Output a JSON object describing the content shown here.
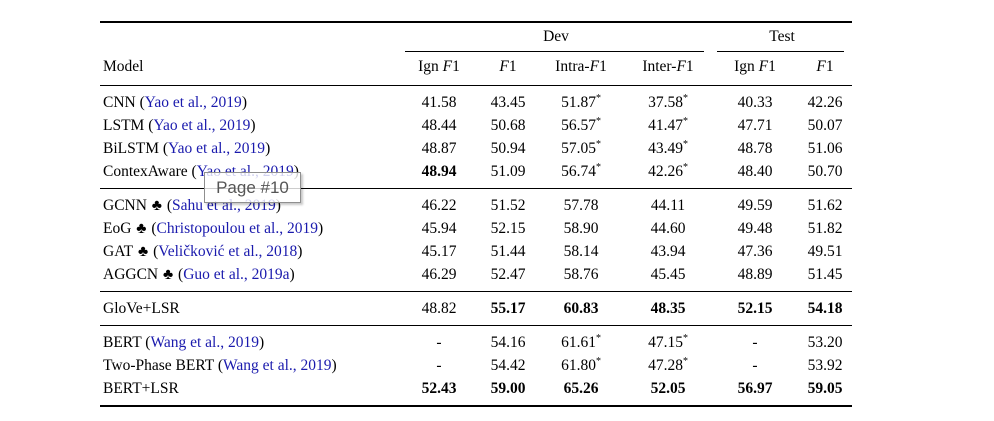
{
  "tooltip": {
    "text": "Page #10"
  },
  "colors": {
    "link_blue": "#1a1aad",
    "rule": "#000000",
    "tooltip_border": "#8f8f8f",
    "tooltip_text": "#555555"
  },
  "symbols": {
    "club": "♣",
    "star": "*",
    "dash": "-",
    "open_paren": " (",
    "close_paren": ")"
  },
  "table": {
    "span_headers": [
      {
        "label": "",
        "span": 1,
        "underline": false
      },
      {
        "label": "Dev",
        "span": 4,
        "underline": true
      },
      {
        "label": "Test",
        "span": 2,
        "underline": true
      }
    ],
    "columns": [
      {
        "text": "Model"
      },
      {
        "pre": "Ign ",
        "italic": "F",
        "post": "1"
      },
      {
        "pre": "",
        "italic": "F",
        "post": "1"
      },
      {
        "pre": "Intra-",
        "italic": "F",
        "post": "1"
      },
      {
        "pre": "Inter-",
        "italic": "F",
        "post": "1"
      },
      {
        "pre": "Ign ",
        "italic": "F",
        "post": "1"
      },
      {
        "pre": "",
        "italic": "F",
        "post": "1"
      }
    ],
    "groups": [
      {
        "rows": [
          {
            "model": {
              "name": "CNN",
              "club": false,
              "cite": "Yao et al., 2019"
            },
            "cells": [
              {
                "v": "41.58"
              },
              {
                "v": "43.45"
              },
              {
                "v": "51.87",
                "star": true
              },
              {
                "v": "37.58",
                "star": true
              },
              {
                "v": "40.33"
              },
              {
                "v": "42.26"
              }
            ]
          },
          {
            "model": {
              "name": "LSTM",
              "club": false,
              "cite": "Yao et al., 2019"
            },
            "cells": [
              {
                "v": "48.44"
              },
              {
                "v": "50.68"
              },
              {
                "v": "56.57",
                "star": true
              },
              {
                "v": "41.47",
                "star": true
              },
              {
                "v": "47.71"
              },
              {
                "v": "50.07"
              }
            ]
          },
          {
            "model": {
              "name": "BiLSTM",
              "club": false,
              "cite": "Yao et al., 2019"
            },
            "cells": [
              {
                "v": "48.87"
              },
              {
                "v": "50.94"
              },
              {
                "v": "57.05",
                "star": true
              },
              {
                "v": "43.49",
                "star": true
              },
              {
                "v": "48.78"
              },
              {
                "v": "51.06"
              }
            ]
          },
          {
            "model": {
              "name": "ContexAware",
              "club": false,
              "cite": "Yao et al., 2019"
            },
            "cells": [
              {
                "v": "48.94",
                "b": true
              },
              {
                "v": "51.09"
              },
              {
                "v": "56.74",
                "star": true
              },
              {
                "v": "42.26",
                "star": true
              },
              {
                "v": "48.40"
              },
              {
                "v": "50.70"
              }
            ]
          }
        ]
      },
      {
        "rows": [
          {
            "model": {
              "name": "GCNN",
              "club": true,
              "cite": "Sahu et al., 2019"
            },
            "cells": [
              {
                "v": "46.22"
              },
              {
                "v": "51.52"
              },
              {
                "v": "57.78"
              },
              {
                "v": "44.11"
              },
              {
                "v": "49.59"
              },
              {
                "v": "51.62"
              }
            ]
          },
          {
            "model": {
              "name": "EoG",
              "club": true,
              "cite": "Christopoulou et al., 2019"
            },
            "cells": [
              {
                "v": "45.94"
              },
              {
                "v": "52.15"
              },
              {
                "v": "58.90"
              },
              {
                "v": "44.60"
              },
              {
                "v": "49.48"
              },
              {
                "v": "51.82"
              }
            ]
          },
          {
            "model": {
              "name": "GAT",
              "club": true,
              "cite": "Veličković et al., 2018"
            },
            "cells": [
              {
                "v": "45.17"
              },
              {
                "v": "51.44"
              },
              {
                "v": "58.14"
              },
              {
                "v": "43.94"
              },
              {
                "v": "47.36"
              },
              {
                "v": "49.51"
              }
            ]
          },
          {
            "model": {
              "name": "AGGCN",
              "club": true,
              "cite": "Guo et al., 2019a"
            },
            "cells": [
              {
                "v": "46.29"
              },
              {
                "v": "52.47"
              },
              {
                "v": "58.76"
              },
              {
                "v": "45.45"
              },
              {
                "v": "48.89"
              },
              {
                "v": "51.45"
              }
            ]
          }
        ]
      },
      {
        "rows": [
          {
            "model": {
              "name": "GloVe+LSR",
              "club": false,
              "cite": ""
            },
            "cells": [
              {
                "v": "48.82"
              },
              {
                "v": "55.17",
                "b": true
              },
              {
                "v": "60.83",
                "b": true
              },
              {
                "v": "48.35",
                "b": true
              },
              {
                "v": "52.15",
                "b": true
              },
              {
                "v": "54.18",
                "b": true
              }
            ]
          }
        ]
      },
      {
        "rows": [
          {
            "model": {
              "name": "BERT",
              "club": false,
              "cite": "Wang et al., 2019"
            },
            "cells": [
              {
                "v": "-"
              },
              {
                "v": "54.16"
              },
              {
                "v": "61.61",
                "star": true
              },
              {
                "v": "47.15",
                "star": true
              },
              {
                "v": "-"
              },
              {
                "v": "53.20"
              }
            ]
          },
          {
            "model": {
              "name": "Two-Phase BERT",
              "club": false,
              "cite": "Wang et al., 2019"
            },
            "cells": [
              {
                "v": "-"
              },
              {
                "v": "54.42"
              },
              {
                "v": "61.80",
                "star": true
              },
              {
                "v": "47.28",
                "star": true
              },
              {
                "v": "-"
              },
              {
                "v": "53.92"
              }
            ]
          },
          {
            "model": {
              "name": "BERT+LSR",
              "club": false,
              "cite": ""
            },
            "cells": [
              {
                "v": "52.43",
                "b": true
              },
              {
                "v": "59.00",
                "b": true
              },
              {
                "v": "65.26",
                "b": true
              },
              {
                "v": "52.05",
                "b": true
              },
              {
                "v": "56.97",
                "b": true
              },
              {
                "v": "59.05",
                "b": true
              }
            ]
          }
        ]
      }
    ]
  }
}
